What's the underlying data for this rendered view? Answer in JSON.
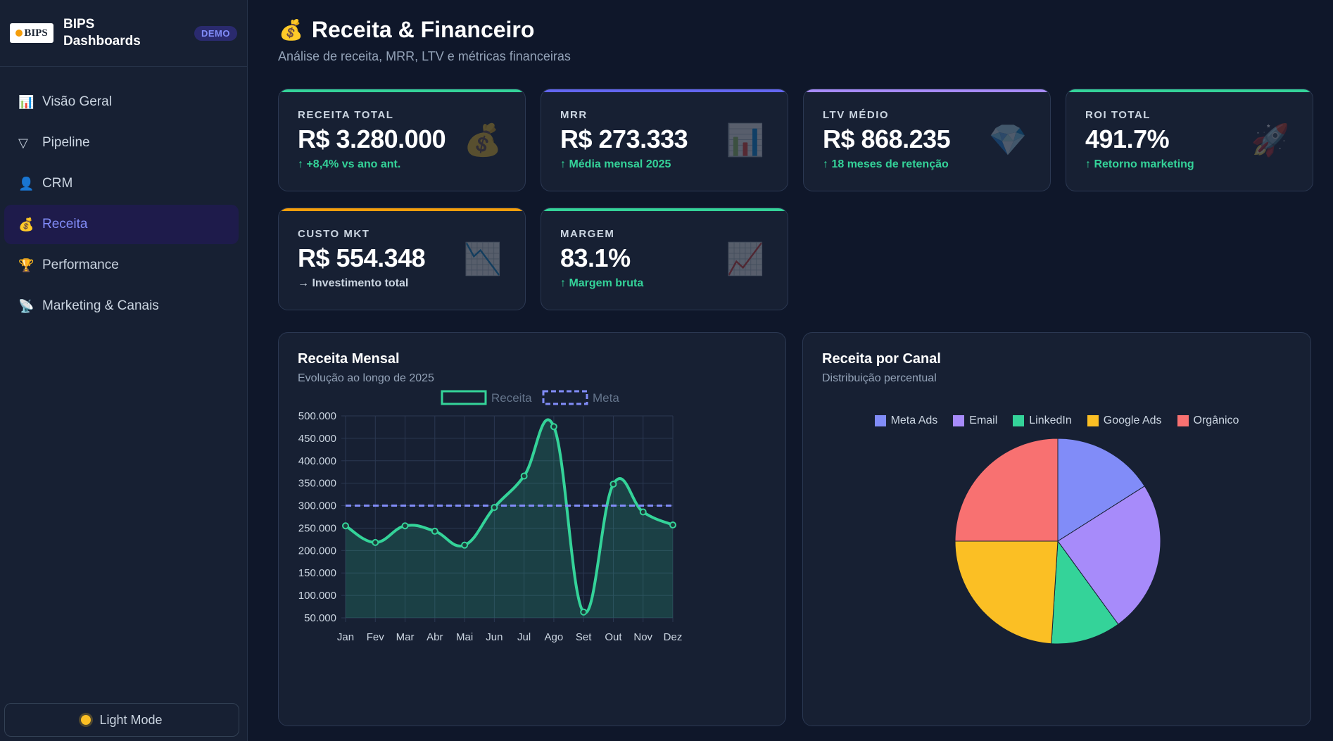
{
  "brand": {
    "logo_text": "BIPS",
    "name": "BIPS Dashboards",
    "badge": "DEMO"
  },
  "nav": [
    {
      "label": "Visão Geral",
      "icon": "bar-chart-icon",
      "glyph": "📊",
      "active": false
    },
    {
      "label": "Pipeline",
      "icon": "funnel-icon",
      "glyph": "▽",
      "active": false
    },
    {
      "label": "CRM",
      "icon": "person-icon",
      "glyph": "👤",
      "active": false
    },
    {
      "label": "Receita",
      "icon": "money-bag-icon",
      "glyph": "💰",
      "active": true
    },
    {
      "label": "Performance",
      "icon": "trophy-icon",
      "glyph": "🏆",
      "active": false
    },
    {
      "label": "Marketing & Canais",
      "icon": "satellite-icon",
      "glyph": "📡",
      "active": false
    }
  ],
  "theme_toggle": {
    "label": "Light Mode",
    "icon": "sun-icon"
  },
  "page": {
    "title": "Receita & Financeiro",
    "title_icon": "money-bag-icon",
    "subtitle": "Análise de receita, MRR, LTV e métricas financeiras"
  },
  "kpis": [
    {
      "label": "RECEITA TOTAL",
      "value": "R$ 3.280.000",
      "sub": "↑ +8,4% vs ano ant.",
      "trend": "up",
      "color": "#34d399",
      "icon": "money-bag-icon",
      "glyph": "💰"
    },
    {
      "label": "MRR",
      "value": "R$ 273.333",
      "sub": "↑ Média mensal 2025",
      "trend": "up",
      "color": "#6366f1",
      "icon": "bar-chart-icon",
      "glyph": "📊"
    },
    {
      "label": "LTV MÉDIO",
      "value": "R$ 868.235",
      "sub": "↑ 18 meses de retenção",
      "trend": "up",
      "color": "#a78bfa",
      "icon": "gem-icon",
      "glyph": "💎"
    },
    {
      "label": "ROI TOTAL",
      "value": "491.7%",
      "sub": "↑ Retorno marketing",
      "trend": "up",
      "color": "#34d399",
      "icon": "rocket-icon",
      "glyph": "🚀"
    },
    {
      "label": "CUSTO MKT",
      "value": "R$ 554.348",
      "sub": "→ Investimento total",
      "trend": "neutral",
      "color": "#f59e0b",
      "icon": "chart-down-icon",
      "glyph": "📉"
    },
    {
      "label": "MARGEM",
      "value": "83.1%",
      "sub": "↑ Margem bruta",
      "trend": "up",
      "color": "#34d399",
      "icon": "chart-up-icon",
      "glyph": "📈"
    }
  ],
  "revenue_panel": {
    "title": "Receita Mensal",
    "subtitle": "Evolução ao longo de 2025"
  },
  "channel_panel": {
    "title": "Receita por Canal",
    "subtitle": "Distribuição percentual"
  },
  "chart_data": [
    {
      "type": "line",
      "title": "Receita Mensal",
      "categories": [
        "Jan",
        "Fev",
        "Mar",
        "Abr",
        "Mai",
        "Jun",
        "Jul",
        "Ago",
        "Set",
        "Out",
        "Nov",
        "Dez"
      ],
      "series": [
        {
          "name": "Receita",
          "values": [
            255000,
            218000,
            255000,
            243000,
            212000,
            296000,
            366000,
            476000,
            63000,
            348000,
            286000,
            257000
          ],
          "color": "#34d399",
          "style": "solid-filled"
        },
        {
          "name": "Meta",
          "values": [
            300000,
            300000,
            300000,
            300000,
            300000,
            300000,
            300000,
            300000,
            300000,
            300000,
            300000,
            300000
          ],
          "color": "#818cf8",
          "style": "dashed"
        }
      ],
      "y_ticks": [
        "500.000",
        "450.000",
        "400.000",
        "350.000",
        "300.000",
        "250.000",
        "200.000",
        "150.000",
        "100.000",
        "50.000"
      ],
      "ylim": [
        50000,
        500000
      ],
      "grid": true,
      "legend": "top"
    },
    {
      "type": "pie",
      "title": "Receita por Canal",
      "labels": [
        "Meta Ads",
        "Email",
        "LinkedIn",
        "Google Ads",
        "Orgânico"
      ],
      "values": [
        16,
        24,
        11,
        24,
        25
      ],
      "colors": [
        "#818cf8",
        "#a78bfa",
        "#34d399",
        "#fbbf24",
        "#f87171"
      ],
      "legend": "top"
    }
  ]
}
